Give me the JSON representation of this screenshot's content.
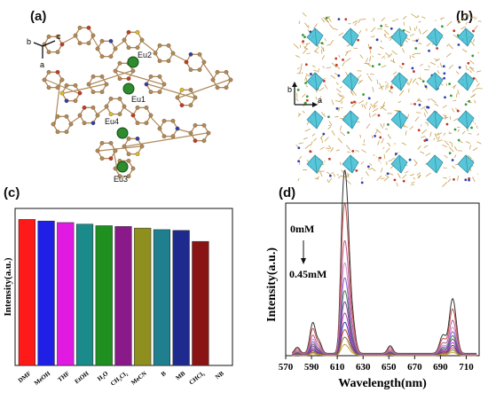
{
  "panels": {
    "a": {
      "label": "(a)"
    },
    "b": {
      "label": "(b)"
    },
    "c": {
      "label": "(c)"
    },
    "d": {
      "label": "(d)"
    }
  },
  "structure_a": {
    "atom_labels": [
      "Eu2",
      "Eu1",
      "Eu4",
      "Eu3"
    ],
    "axes": [
      "b",
      "c",
      "a"
    ],
    "colors": {
      "eu": "#2e8b2e",
      "carbon": "#b08a5a",
      "oxygen": "#c0392b",
      "nitrogen": "#2c3fb0",
      "sulfur": "#d8c020"
    }
  },
  "packing_b": {
    "axes": [
      "b",
      "a"
    ],
    "colors": {
      "polyhedra": "#4fc3d8",
      "framework": "#c8a050"
    }
  },
  "chart_data": [
    {
      "type": "bar",
      "panel": "c",
      "categories": [
        "DMF",
        "MeOH",
        "THF",
        "EtOH",
        "H₂O",
        "CH₂Cl₂",
        "MeCN",
        "B",
        "MB",
        "CHCl₃",
        "NB"
      ],
      "values": [
        0.93,
        0.92,
        0.91,
        0.9,
        0.89,
        0.885,
        0.875,
        0.865,
        0.86,
        0.79,
        0.0
      ],
      "colors": [
        "#ff1a1a",
        "#1f1fe6",
        "#e01ae0",
        "#1a8a8a",
        "#1f8f1f",
        "#8a1a8a",
        "#8f8f1f",
        "#1f7f8f",
        "#1f2a8f",
        "#8a1414",
        "#ffffff"
      ],
      "ylabel": "Intensity(a.u.)",
      "ylim": [
        0,
        1.0
      ]
    },
    {
      "type": "line",
      "panel": "d",
      "xlabel": "Wavelength(nm)",
      "ylabel": "Intensity(a.u.)",
      "xlim": [
        570,
        720
      ],
      "ylim": [
        0,
        1.0
      ],
      "xticks": [
        570,
        590,
        610,
        630,
        650,
        670,
        690,
        710
      ],
      "annotations": {
        "top": "0mM",
        "bottom": "0.45mM"
      },
      "scales": [
        1.0,
        0.82,
        0.62,
        0.5,
        0.42,
        0.35,
        0.29,
        0.23,
        0.18,
        0.14,
        0.1,
        0.06
      ],
      "colors": [
        "#333333",
        "#c0504d",
        "#b85c8c",
        "#cf8fcf",
        "#8a5fc8",
        "#4a7a4a",
        "#7a3aa8",
        "#aa44aa",
        "#3a3ab0",
        "#c04040",
        "#7a7a3a",
        "#c8a030"
      ],
      "peaks": [
        {
          "center": 579,
          "height": 0.04,
          "width": 2.0
        },
        {
          "center": 591,
          "height": 0.2,
          "width": 2.2
        },
        {
          "center": 596,
          "height": 0.07,
          "width": 2.0
        },
        {
          "center": 614,
          "height": 0.55,
          "width": 1.8
        },
        {
          "center": 617,
          "height": 0.98,
          "width": 2.4
        },
        {
          "center": 622,
          "height": 0.18,
          "width": 2.2
        },
        {
          "center": 651,
          "height": 0.05,
          "width": 2.0
        },
        {
          "center": 692,
          "height": 0.12,
          "width": 2.5
        },
        {
          "center": 699,
          "height": 0.32,
          "width": 2.3
        },
        {
          "center": 702,
          "height": 0.1,
          "width": 2.0
        }
      ]
    }
  ]
}
